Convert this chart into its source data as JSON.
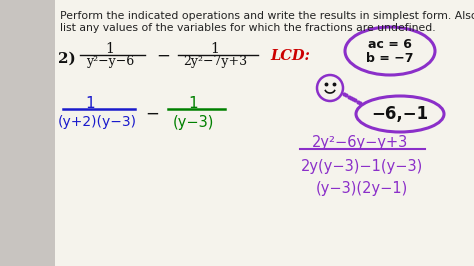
{
  "bg_color": "#f5f3ec",
  "left_margin_color": "#c8c4c0",
  "title_text1": "Perform the indicated operations and write the results in simplest form. Also,",
  "title_text2": "list any values of the variables for which the fractions are undefined.",
  "title_fontsize": 7.8,
  "title_color": "#222222",
  "problem_number": "2)",
  "frac1_num": "1",
  "frac1_den": "y²−y−6",
  "frac2_num": "1",
  "frac2_den": "2y²−7y+3",
  "lcd_text": "LCD:",
  "lcd_color": "#cc0000",
  "factored_frac1_num": "1",
  "factored_frac1_den": "(y+2)(y−3)",
  "factored_frac2_den": "(y−3)",
  "ac6_text": "ac = 6",
  "b7_text": "b = −7",
  "circle2_text": "−6,−1",
  "factor_work1": "2y²−6y−y+3",
  "factor_work2": "2y(y−3)−1(y−3)",
  "factor_work3": "(y−3)(2y−1)",
  "blue_color": "#1a1acc",
  "green_color": "#008000",
  "purple_color": "#8b2fc9",
  "dark_color": "#111111",
  "red_color": "#cc0000",
  "gray_color": "#aaaaaa"
}
